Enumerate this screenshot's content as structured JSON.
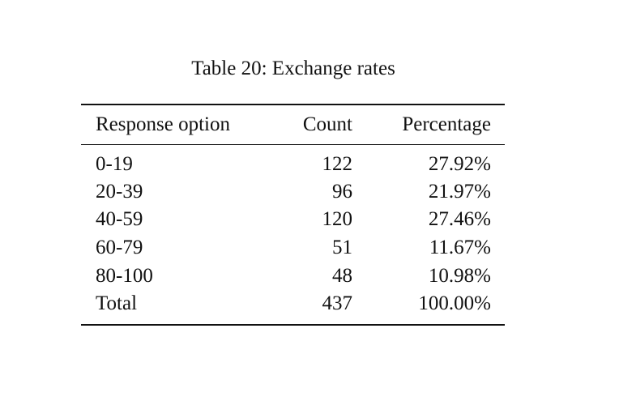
{
  "table": {
    "caption": "Table 20: Exchange rates",
    "header": [
      "Response option",
      "Count",
      "Percentage"
    ],
    "rows": [
      [
        "0-19",
        "122",
        "27.92%"
      ],
      [
        "20-39",
        "96",
        "21.97%"
      ],
      [
        "40-59",
        "120",
        "27.46%"
      ],
      [
        "60-79",
        "51",
        "11.67%"
      ],
      [
        "80-100",
        "48",
        "10.98%"
      ],
      [
        "Total",
        "437",
        "100.00%"
      ]
    ]
  }
}
